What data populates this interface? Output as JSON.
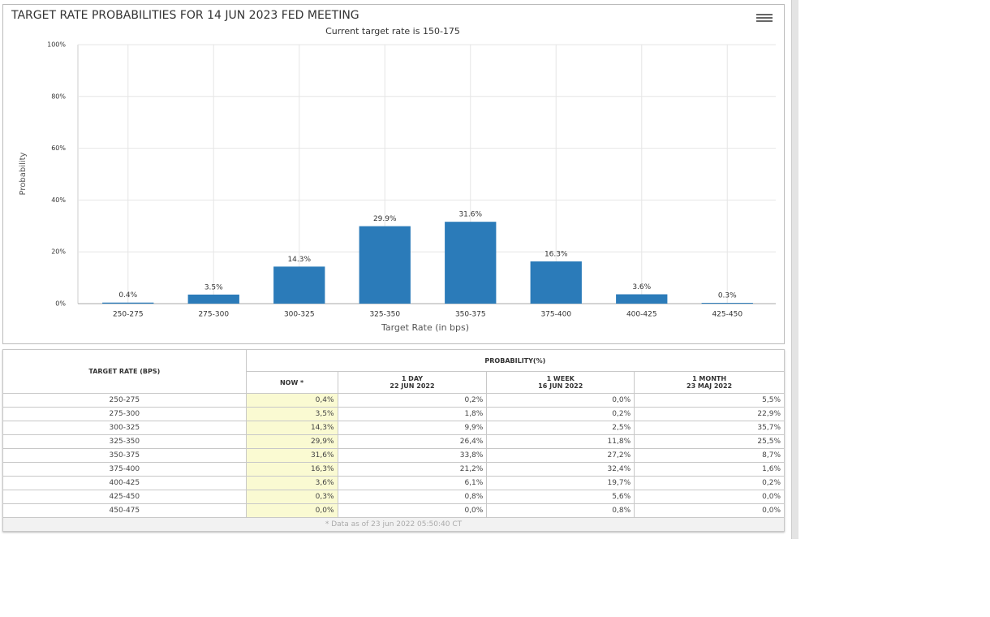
{
  "chart_data": {
    "type": "bar",
    "title": "TARGET RATE PROBABILITIES FOR 14 JUN 2023 FED MEETING",
    "subtitle": "Current target rate is 150-175",
    "x_label": "Target Rate (in bps)",
    "y_label": "Probability",
    "categories": [
      "250-275",
      "275-300",
      "300-325",
      "325-350",
      "350-375",
      "375-400",
      "400-425",
      "425-450"
    ],
    "values": [
      0.4,
      3.5,
      14.3,
      29.9,
      31.6,
      16.3,
      3.6,
      0.3
    ],
    "value_labels": [
      "0.4%",
      "3.5%",
      "14.3%",
      "29.9%",
      "31.6%",
      "16.3%",
      "3.6%",
      "0.3%"
    ],
    "color": "#2b7bb9",
    "ylim": [
      0,
      100
    ],
    "yticks": [
      {
        "value": 0,
        "label": "0%"
      },
      {
        "value": 20,
        "label": "20%"
      },
      {
        "value": 40,
        "label": "40%"
      },
      {
        "value": 60,
        "label": "60%"
      },
      {
        "value": 80,
        "label": "80%"
      },
      {
        "value": 100,
        "label": "100%"
      }
    ],
    "grid": true
  },
  "table": {
    "rate_header": "TARGET RATE (BPS)",
    "group_header": "PROBABILITY(%)",
    "columns": [
      [
        "NOW *"
      ],
      [
        "1 DAY",
        "22 JUN 2022"
      ],
      [
        "1 WEEK",
        "16 JUN 2022"
      ],
      [
        "1 MONTH",
        "23 MAJ 2022"
      ]
    ],
    "rows": [
      [
        "250-275",
        "0,4%",
        "0,2%",
        "0,0%",
        "5,5%"
      ],
      [
        "275-300",
        "3,5%",
        "1,8%",
        "0,2%",
        "22,9%"
      ],
      [
        "300-325",
        "14,3%",
        "9,9%",
        "2,5%",
        "35,7%"
      ],
      [
        "325-350",
        "29,9%",
        "26,4%",
        "11,8%",
        "25,5%"
      ],
      [
        "350-375",
        "31,6%",
        "33,8%",
        "27,2%",
        "8,7%"
      ],
      [
        "375-400",
        "16,3%",
        "21,2%",
        "32,4%",
        "1,6%"
      ],
      [
        "400-425",
        "3,6%",
        "6,1%",
        "19,7%",
        "0,2%"
      ],
      [
        "425-450",
        "0,3%",
        "0,8%",
        "5,6%",
        "0,0%"
      ],
      [
        "450-475",
        "0,0%",
        "0,0%",
        "0,8%",
        "0,0%"
      ]
    ],
    "footnote": "* Data as of 23 jun 2022 05:50:40 CT"
  }
}
